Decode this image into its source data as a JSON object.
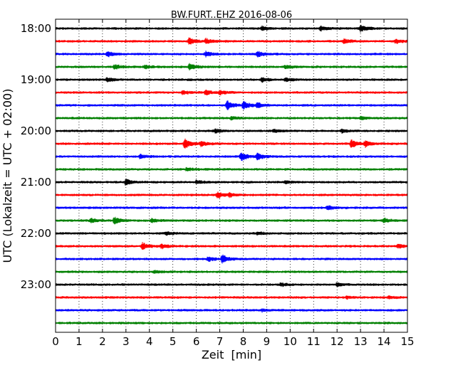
{
  "chart_data": {
    "type": "line",
    "title": "BW.FURT..EHZ 2016-08-06",
    "xlabel": "Zeit  [min]",
    "ylabel": "UTC (Lokalzeit = UTC + 02:00)",
    "xlim": [
      0,
      15
    ],
    "x_ticks": [
      0,
      1,
      2,
      3,
      4,
      5,
      6,
      7,
      8,
      9,
      10,
      11,
      12,
      13,
      14,
      15
    ],
    "x_grid": "dotted vertical lines at each minute",
    "trace_interval_min": 15,
    "y_tick_labels": [
      "18:00",
      "19:00",
      "20:00",
      "21:00",
      "22:00",
      "23:00"
    ],
    "color_cycle": [
      "#000000",
      "#ff0000",
      "#0000ff",
      "#008000"
    ],
    "traces": [
      {
        "start": "18:00",
        "color": "#000000",
        "events": [
          [
            8.8,
            0.8
          ],
          [
            11.3,
            1.0
          ],
          [
            13.0,
            1.4
          ]
        ]
      },
      {
        "start": "18:15",
        "color": "#ff0000",
        "events": [
          [
            5.7,
            1.5
          ],
          [
            6.4,
            1.0
          ],
          [
            12.3,
            0.9
          ],
          [
            14.5,
            0.8
          ]
        ]
      },
      {
        "start": "18:30",
        "color": "#0000ff",
        "events": [
          [
            2.2,
            1.2
          ],
          [
            6.4,
            1.0
          ],
          [
            8.6,
            1.2
          ]
        ]
      },
      {
        "start": "18:45",
        "color": "#008000",
        "events": [
          [
            2.5,
            1.0
          ],
          [
            3.8,
            0.7
          ],
          [
            5.7,
            1.4
          ],
          [
            9.8,
            0.7
          ]
        ]
      },
      {
        "start": "19:00",
        "color": "#000000",
        "events": [
          [
            2.2,
            0.9
          ],
          [
            8.8,
            0.9
          ],
          [
            9.8,
            0.7
          ]
        ]
      },
      {
        "start": "19:15",
        "color": "#ff0000",
        "events": [
          [
            5.4,
            0.7
          ],
          [
            6.4,
            1.0
          ],
          [
            7.0,
            0.8
          ]
        ]
      },
      {
        "start": "19:30",
        "color": "#0000ff",
        "events": [
          [
            7.3,
            2.0
          ],
          [
            8.0,
            1.6
          ],
          [
            8.6,
            1.0
          ]
        ]
      },
      {
        "start": "19:45",
        "color": "#008000",
        "events": [
          [
            7.5,
            0.6
          ],
          [
            13.0,
            0.6
          ]
        ]
      },
      {
        "start": "20:00",
        "color": "#000000",
        "events": [
          [
            6.8,
            0.8
          ],
          [
            9.3,
            0.6
          ],
          [
            12.2,
            0.7
          ]
        ]
      },
      {
        "start": "20:15",
        "color": "#ff0000",
        "events": [
          [
            5.5,
            2.0
          ],
          [
            6.2,
            1.0
          ],
          [
            12.6,
            1.6
          ],
          [
            13.2,
            1.2
          ]
        ]
      },
      {
        "start": "20:30",
        "color": "#0000ff",
        "events": [
          [
            3.6,
            0.8
          ],
          [
            7.9,
            1.8
          ],
          [
            8.6,
            1.4
          ]
        ]
      },
      {
        "start": "20:45",
        "color": "#008000",
        "events": [
          [
            5.6,
            0.6
          ]
        ]
      },
      {
        "start": "21:00",
        "color": "#000000",
        "events": [
          [
            3.0,
            1.4
          ],
          [
            6.0,
            0.7
          ],
          [
            9.8,
            0.6
          ]
        ]
      },
      {
        "start": "21:15",
        "color": "#ff0000",
        "events": [
          [
            6.9,
            1.3
          ],
          [
            7.4,
            0.9
          ]
        ]
      },
      {
        "start": "21:30",
        "color": "#0000ff",
        "events": [
          [
            11.6,
            0.9
          ]
        ]
      },
      {
        "start": "21:45",
        "color": "#008000",
        "events": [
          [
            1.5,
            0.8
          ],
          [
            2.5,
            1.4
          ],
          [
            4.1,
            0.8
          ],
          [
            14.0,
            0.9
          ]
        ]
      },
      {
        "start": "22:00",
        "color": "#000000",
        "events": [
          [
            4.7,
            0.7
          ],
          [
            8.6,
            0.6
          ]
        ]
      },
      {
        "start": "22:15",
        "color": "#ff0000",
        "events": [
          [
            3.7,
            1.4
          ],
          [
            4.5,
            0.9
          ],
          [
            14.6,
            0.8
          ]
        ]
      },
      {
        "start": "22:30",
        "color": "#0000ff",
        "events": [
          [
            6.5,
            0.9
          ],
          [
            7.1,
            1.5
          ]
        ]
      },
      {
        "start": "22:45",
        "color": "#008000",
        "events": [
          [
            4.2,
            0.6
          ]
        ]
      },
      {
        "start": "23:00",
        "color": "#000000",
        "events": [
          [
            9.6,
            0.6
          ],
          [
            12.0,
            0.6
          ]
        ]
      },
      {
        "start": "23:15",
        "color": "#ff0000",
        "events": [
          [
            12.4,
            0.5
          ],
          [
            14.2,
            0.5
          ]
        ]
      },
      {
        "start": "23:30",
        "color": "#0000ff",
        "events": [
          [
            8.8,
            0.5
          ]
        ]
      },
      {
        "start": "23:45",
        "color": "#008000",
        "events": []
      }
    ]
  }
}
